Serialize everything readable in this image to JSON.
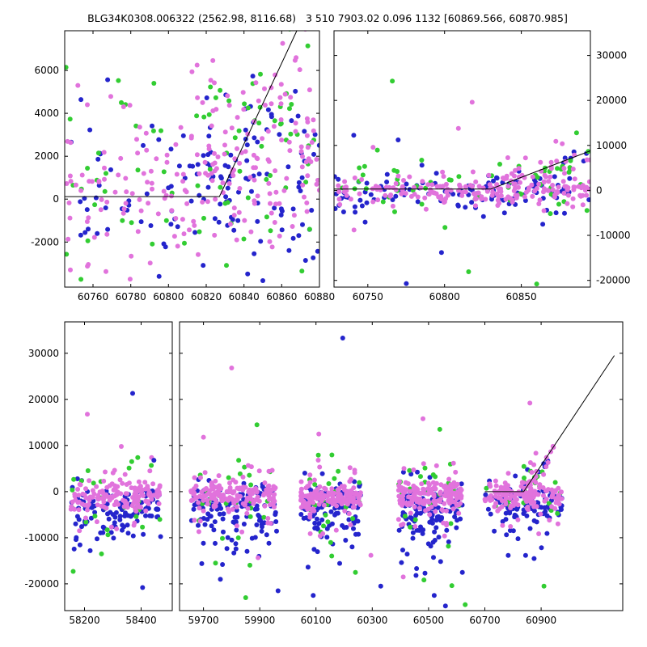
{
  "title": "BLG34K0308.006322 (2562.98, 8116.68)   3 510 7903.02 0.096 1132 [60869.566, 60870.985]",
  "colors": {
    "blue": "#2424cc",
    "violet": "#e173dc",
    "green": "#32cd32",
    "line": "#000000",
    "frame": "#000000",
    "background": "#ffffff",
    "text": "#000000"
  },
  "marker_radius": 3,
  "chart_data": {
    "type": "scatter",
    "title": "BLG34K0308.006322 (2562.98, 8116.68)   3 510 7903.02 0.096 1132 [60869.566, 60870.985]",
    "legend": "none",
    "grid": false,
    "panels": [
      {
        "id": "p1",
        "name": "top-left-zoom",
        "xlim": [
          60745,
          60880
        ],
        "ylim": [
          -4100,
          7850
        ],
        "xticks": [
          60760,
          60780,
          60800,
          60820,
          60840,
          60860,
          60880
        ],
        "yticks": [
          -2000,
          0,
          2000,
          4000,
          6000
        ],
        "ylabel_side": "left",
        "seed": 11,
        "line": [
          [
            60745,
            120
          ],
          [
            60827,
            120
          ],
          [
            60868,
            7850
          ]
        ],
        "clusters": [
          {
            "color": "blue",
            "n": 105,
            "x": [
              60745,
              60880
            ],
            "y_mean": 200,
            "y_sd": 2000
          },
          {
            "color": "green",
            "n": 50,
            "x": [
              60745,
              60880
            ],
            "y_mean": 500,
            "y_sd": 2300
          },
          {
            "color": "violet",
            "n": 150,
            "x": [
              60745,
              60880
            ],
            "y_mean": 500,
            "y_sd": 1700
          },
          {
            "color": "blue",
            "n": 30,
            "x": [
              60812,
              60880
            ],
            "y_mean": 2400,
            "y_sd": 2300
          },
          {
            "color": "green",
            "n": 22,
            "x": [
              60818,
              60880
            ],
            "y_mean": 3600,
            "y_sd": 1900
          },
          {
            "color": "violet",
            "n": 55,
            "x": [
              60812,
              60880
            ],
            "y_mean": 2900,
            "y_sd": 1900
          },
          {
            "color": "violet",
            "n": 20,
            "x": [
              60828,
              60874
            ],
            "slope_from": [
              60828,
              120
            ],
            "slope": 170,
            "y_sd": 900
          },
          {
            "color": "green",
            "n": 9,
            "x": [
              60830,
              60874
            ],
            "slope_from": [
              60828,
              120
            ],
            "slope": 170,
            "y_sd": 1100
          },
          {
            "color": "blue",
            "n": 8,
            "x": [
              60830,
              60874
            ],
            "slope_from": [
              60828,
              120
            ],
            "slope": 170,
            "y_sd": 1300
          }
        ],
        "outliers": [
          [
            60752,
            5300,
            "violet"
          ],
          [
            60757,
            4400,
            "violet"
          ],
          [
            60775,
            4500,
            "green"
          ],
          [
            60748,
            -3300,
            "violet"
          ],
          [
            60795,
            -3600,
            "blue"
          ],
          [
            60850,
            -3800,
            "blue"
          ]
        ]
      },
      {
        "id": "p2",
        "name": "top-right-wide",
        "xlim": [
          60728,
          60895
        ],
        "ylim": [
          -21500,
          35500
        ],
        "xticks": [
          60750,
          60800,
          60850
        ],
        "yticks": [
          -20000,
          -10000,
          0,
          10000,
          20000,
          30000
        ],
        "ylabel_side": "right",
        "seed": 22,
        "line": [
          [
            60728,
            300
          ],
          [
            60830,
            300
          ],
          [
            60895,
            8800
          ]
        ],
        "clusters": [
          {
            "color": "blue",
            "n": 110,
            "x": [
              60728,
              60895
            ],
            "y_mean": -500,
            "y_sd": 2100
          },
          {
            "color": "green",
            "n": 42,
            "x": [
              60728,
              60895
            ],
            "y_mean": 300,
            "y_sd": 2800
          },
          {
            "color": "violet",
            "n": 170,
            "x": [
              60728,
              60895
            ],
            "y_mean": 100,
            "y_sd": 1500
          },
          {
            "color": "violet",
            "n": 45,
            "x": [
              60828,
              60895
            ],
            "slope_from": [
              60828,
              300
            ],
            "slope": 105,
            "y_sd": 1700
          },
          {
            "color": "blue",
            "n": 14,
            "x": [
              60828,
              60895
            ],
            "slope_from": [
              60828,
              300
            ],
            "slope": 100,
            "y_sd": 2200
          },
          {
            "color": "green",
            "n": 12,
            "x": [
              60833,
              60895
            ],
            "slope_from": [
              60828,
              300
            ],
            "slope": 110,
            "y_sd": 2000
          },
          {
            "color": "violet",
            "n": 8,
            "x": [
              60730,
              60890
            ],
            "y_mean": 0,
            "y_sd": 8500
          },
          {
            "color": "blue",
            "n": 7,
            "x": [
              60730,
              60890
            ],
            "y_mean": -3000,
            "y_sd": 9000
          },
          {
            "color": "green",
            "n": 6,
            "x": [
              60730,
              60890
            ],
            "y_mean": 0,
            "y_sd": 9000
          }
        ],
        "outliers": [
          [
            60766,
            24300,
            "green"
          ],
          [
            60818,
            19600,
            "violet"
          ],
          [
            60798,
            -13800,
            "blue"
          ],
          [
            60860,
            -20800,
            "green"
          ],
          [
            60741,
            -8800,
            "violet"
          ],
          [
            60886,
            12800,
            "green"
          ]
        ]
      },
      {
        "id": "p3",
        "name": "bottom-season-1",
        "xlim": [
          58130,
          58510
        ],
        "ylim": [
          -25800,
          36800
        ],
        "xticks": [
          58200,
          58400
        ],
        "yticks": [
          -20000,
          -10000,
          0,
          10000,
          20000,
          30000
        ],
        "ylabel_side": "left",
        "seed": 33,
        "line": null,
        "clusters": [
          {
            "color": "blue",
            "n": 100,
            "x": [
              58150,
              58470
            ],
            "y_mean": -3800,
            "y_sd": 2700
          },
          {
            "color": "green",
            "n": 20,
            "x": [
              58150,
              58470
            ],
            "y_mean": -2500,
            "y_sd": 3500
          },
          {
            "color": "violet",
            "n": 135,
            "x": [
              58150,
              58470
            ],
            "y_mean": -1300,
            "y_sd": 1700
          },
          {
            "color": "blue",
            "n": 16,
            "x": [
              58160,
              58460
            ],
            "y_mean": -9500,
            "y_sd": 3200
          },
          {
            "color": "violet",
            "n": 10,
            "x": [
              58160,
              58460
            ],
            "y_mean": -6500,
            "y_sd": 2600
          },
          {
            "color": "violet",
            "n": 8,
            "x": [
              58160,
              58460
            ],
            "y_mean": 3500,
            "y_sd": 1500
          },
          {
            "color": "green",
            "n": 4,
            "x": [
              58180,
              58450
            ],
            "y_mean": 5500,
            "y_sd": 2000
          }
        ],
        "outliers": [
          [
            58370,
            21300,
            "blue"
          ],
          [
            58210,
            16800,
            "violet"
          ],
          [
            58330,
            9800,
            "violet"
          ],
          [
            58160,
            -17300,
            "green"
          ],
          [
            58405,
            -20800,
            "blue"
          ],
          [
            58260,
            -13500,
            "green"
          ],
          [
            58445,
            6800,
            "blue"
          ],
          [
            58220,
            -12800,
            "blue"
          ]
        ]
      },
      {
        "id": "p4",
        "name": "bottom-seasons-2-5",
        "xlim": [
          59615,
          61190
        ],
        "ylim": [
          -25800,
          36800
        ],
        "xticks": [
          59700,
          59900,
          60100,
          60300,
          60500,
          60700,
          60900
        ],
        "yticks": [
          -20000,
          -10000,
          0,
          10000,
          20000,
          30000
        ],
        "ylabel_side": "none",
        "seed": 44,
        "line": [
          [
            60700,
            0
          ],
          [
            60838,
            0
          ],
          [
            61160,
            29500
          ]
        ],
        "clusters": [
          {
            "color": "blue",
            "n": 110,
            "x": [
              59655,
              59960
            ],
            "y_mean": -3600,
            "y_sd": 2800
          },
          {
            "color": "green",
            "n": 20,
            "x": [
              59655,
              59960
            ],
            "y_mean": -1500,
            "y_sd": 3200
          },
          {
            "color": "violet",
            "n": 155,
            "x": [
              59655,
              59960
            ],
            "y_mean": -1100,
            "y_sd": 1600
          },
          {
            "color": "blue",
            "n": 18,
            "x": [
              59665,
              59950
            ],
            "y_mean": -10000,
            "y_sd": 3300
          },
          {
            "color": "violet",
            "n": 11,
            "x": [
              59665,
              59950
            ],
            "y_mean": -6800,
            "y_sd": 2800
          },
          {
            "color": "green",
            "n": 5,
            "x": [
              59680,
              59940
            ],
            "y_mean": -13000,
            "y_sd": 5000
          },
          {
            "color": "violet",
            "n": 7,
            "x": [
              59670,
              59950
            ],
            "y_mean": 4500,
            "y_sd": 1800
          },
          {
            "color": "green",
            "n": 3,
            "x": [
              59700,
              59930
            ],
            "y_mean": 7000,
            "y_sd": 2500
          },
          {
            "color": "blue",
            "n": 100,
            "x": [
              60045,
              60260
            ],
            "y_mean": -3600,
            "y_sd": 2800
          },
          {
            "color": "green",
            "n": 18,
            "x": [
              60045,
              60260
            ],
            "y_mean": -1200,
            "y_sd": 3000
          },
          {
            "color": "violet",
            "n": 140,
            "x": [
              60045,
              60260
            ],
            "y_mean": -1000,
            "y_sd": 1500
          },
          {
            "color": "blue",
            "n": 15,
            "x": [
              60055,
              60250
            ],
            "y_mean": -10500,
            "y_sd": 3600
          },
          {
            "color": "violet",
            "n": 9,
            "x": [
              60055,
              60250
            ],
            "y_mean": -6500,
            "y_sd": 2600
          },
          {
            "color": "green",
            "n": 4,
            "x": [
              60060,
              60250
            ],
            "y_mean": -14000,
            "y_sd": 4500
          },
          {
            "color": "violet",
            "n": 6,
            "x": [
              60060,
              60250
            ],
            "y_mean": 4200,
            "y_sd": 1600
          },
          {
            "color": "green",
            "n": 3,
            "x": [
              60080,
              60240
            ],
            "y_mean": 6500,
            "y_sd": 2200
          },
          {
            "color": "blue",
            "n": 105,
            "x": [
              60390,
              60620
            ],
            "y_mean": -3700,
            "y_sd": 3000
          },
          {
            "color": "green",
            "n": 20,
            "x": [
              60390,
              60620
            ],
            "y_mean": -1500,
            "y_sd": 3300
          },
          {
            "color": "violet",
            "n": 150,
            "x": [
              60390,
              60620
            ],
            "y_mean": -1100,
            "y_sd": 1600
          },
          {
            "color": "blue",
            "n": 17,
            "x": [
              60400,
              60610
            ],
            "y_mean": -11000,
            "y_sd": 4000
          },
          {
            "color": "violet",
            "n": 11,
            "x": [
              60400,
              60610
            ],
            "y_mean": -7000,
            "y_sd": 3000
          },
          {
            "color": "green",
            "n": 5,
            "x": [
              60410,
              60600
            ],
            "y_mean": -15000,
            "y_sd": 4500
          },
          {
            "color": "violet",
            "n": 7,
            "x": [
              60400,
              60610
            ],
            "y_mean": 4500,
            "y_sd": 1800
          },
          {
            "color": "green",
            "n": 3,
            "x": [
              60420,
              60600
            ],
            "y_mean": 7500,
            "y_sd": 2500
          },
          {
            "color": "blue",
            "n": 85,
            "x": [
              60700,
              60975
            ],
            "y_mean": -3100,
            "y_sd": 2800
          },
          {
            "color": "green",
            "n": 17,
            "x": [
              60700,
              60975
            ],
            "y_mean": -800,
            "y_sd": 2800
          },
          {
            "color": "violet",
            "n": 125,
            "x": [
              60700,
              60975
            ],
            "y_mean": -900,
            "y_sd": 1700
          },
          {
            "color": "blue",
            "n": 11,
            "x": [
              60710,
              60960
            ],
            "y_mean": -9500,
            "y_sd": 3500
          },
          {
            "color": "violet",
            "n": 8,
            "x": [
              60710,
              60960
            ],
            "y_mean": -6000,
            "y_sd": 2500
          },
          {
            "color": "violet",
            "n": 22,
            "x": [
              60830,
              60945
            ],
            "slope_from": [
              60838,
              0
            ],
            "slope": 75,
            "y_sd": 2200
          },
          {
            "color": "green",
            "n": 7,
            "x": [
              60835,
              60940
            ],
            "slope_from": [
              60838,
              0
            ],
            "slope": 80,
            "y_sd": 2500
          },
          {
            "color": "blue",
            "n": 7,
            "x": [
              60835,
              60940
            ],
            "slope_from": [
              60838,
              0
            ],
            "slope": 70,
            "y_sd": 2500
          }
        ],
        "outliers": [
          [
            60195,
            33300,
            "blue"
          ],
          [
            59800,
            26800,
            "violet"
          ],
          [
            60860,
            19200,
            "violet"
          ],
          [
            59890,
            14500,
            "green"
          ],
          [
            60480,
            15800,
            "violet"
          ],
          [
            60540,
            13500,
            "green"
          ],
          [
            59700,
            11800,
            "violet"
          ],
          [
            60110,
            12500,
            "violet"
          ],
          [
            60630,
            -24500,
            "green"
          ],
          [
            60330,
            -20500,
            "blue"
          ],
          [
            60295,
            -13800,
            "violet"
          ],
          [
            60620,
            -17500,
            "blue"
          ],
          [
            59965,
            -21500,
            "blue"
          ],
          [
            60910,
            -20500,
            "green"
          ],
          [
            60875,
            -14500,
            "blue"
          ],
          [
            60090,
            -22500,
            "blue"
          ],
          [
            59850,
            -23000,
            "green"
          ],
          [
            60520,
            -22500,
            "blue"
          ],
          [
            60560,
            -24800,
            "blue"
          ],
          [
            59760,
            -19000,
            "blue"
          ],
          [
            60240,
            -17500,
            "green"
          ],
          [
            60410,
            -18500,
            "violet"
          ]
        ]
      }
    ]
  }
}
